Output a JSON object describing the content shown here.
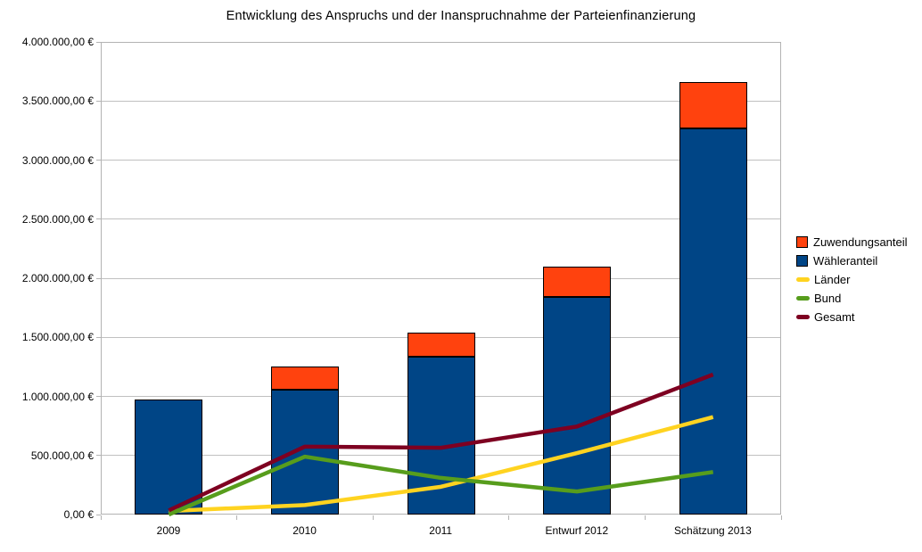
{
  "chart_data": {
    "type": "bar",
    "subtype": "stacked-bars-with-lines",
    "title": "Entwicklung des Anspruchs und der Inanspruchnahme der Parteienfinanzierung",
    "categories": [
      "2009",
      "2010",
      "2011",
      "Entwurf 2012",
      "Schätzung 2013"
    ],
    "bar_series": [
      {
        "id": "waehleranteil",
        "name": "Wähleranteil",
        "color": "#004586",
        "values": [
          970000,
          1060000,
          1335000,
          1840000,
          3270000
        ]
      },
      {
        "id": "zuwendungsanteil",
        "name": "Zuwendungsanteil",
        "color": "#FF420E",
        "values": [
          0,
          190000,
          205000,
          260000,
          390000
        ]
      }
    ],
    "line_series": [
      {
        "id": "laender",
        "name": "Länder",
        "color": "#FFD320",
        "values": [
          30000,
          80000,
          235000,
          520000,
          825000
        ]
      },
      {
        "id": "bund",
        "name": "Bund",
        "color": "#579D1C",
        "values": [
          0,
          490000,
          310000,
          195000,
          360000
        ]
      },
      {
        "id": "gesamt",
        "name": "Gesamt",
        "color": "#7E0021",
        "values": [
          35000,
          575000,
          565000,
          745000,
          1185000
        ]
      }
    ],
    "stacked": true,
    "grid": true,
    "legend_position": "right",
    "ylim": [
      0,
      4000000
    ],
    "y_tick_step": 500000,
    "y_tick_labels": [
      "0,00 €",
      "500.000,00 €",
      "1.000.000,00 €",
      "1.500.000,00 €",
      "2.000.000,00 €",
      "2.500.000,00 €",
      "3.000.000,00 €",
      "3.500.000,00 €",
      "4.000.000,00 €"
    ],
    "legend": [
      {
        "id": "zuwendungsanteil",
        "label": "Zuwendungsanteil",
        "color": "#FF420E",
        "marker": "square"
      },
      {
        "id": "waehleranteil",
        "label": "Wähleranteil",
        "color": "#004586",
        "marker": "square"
      },
      {
        "id": "laender",
        "label": "Länder",
        "color": "#FFD320",
        "marker": "line"
      },
      {
        "id": "bund",
        "label": "Bund",
        "color": "#579D1C",
        "marker": "line"
      },
      {
        "id": "gesamt",
        "label": "Gesamt",
        "color": "#7E0021",
        "marker": "line"
      }
    ],
    "colors": {
      "background": "#ffffff",
      "grid": "#c0c0c0",
      "plot_border": "#b3b3b3",
      "bar_border": "#000000",
      "text": "#000000"
    }
  }
}
